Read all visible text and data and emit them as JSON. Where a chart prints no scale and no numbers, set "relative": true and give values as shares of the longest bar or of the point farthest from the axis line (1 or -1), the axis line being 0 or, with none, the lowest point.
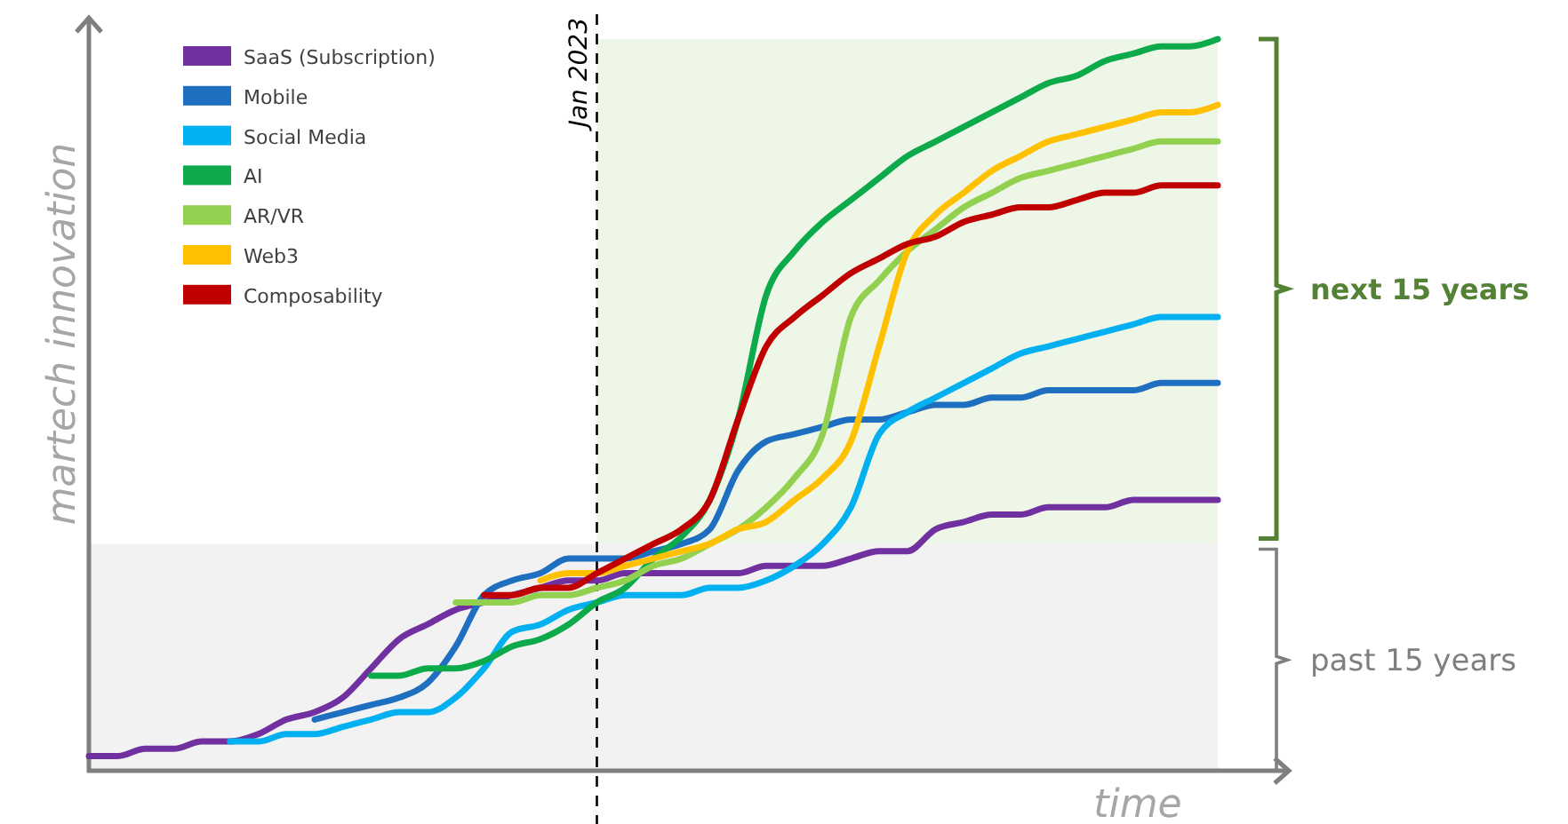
{
  "chart_data": {
    "type": "line",
    "relative": true,
    "xlabel": "time",
    "ylabel": "martech innovation",
    "legend": "top left",
    "categories": [
      null,
      null,
      null,
      null,
      null,
      null,
      null,
      null,
      null,
      null,
      null,
      null,
      null,
      null,
      null,
      null,
      null,
      null,
      null,
      null,
      null,
      null,
      null,
      null,
      null,
      null,
      null,
      null,
      null,
      null,
      null,
      null,
      null,
      null,
      null,
      null,
      null,
      null,
      null,
      null,
      null
    ],
    "series": [
      {
        "name": "SaaS (Subscription)",
        "color": "#7030a0",
        "values": [
          0.02,
          0.02,
          0.03,
          0.03,
          0.04,
          0.04,
          0.05,
          0.07,
          0.08,
          0.1,
          0.14,
          0.18,
          0.2,
          0.22,
          0.23,
          0.24,
          0.25,
          0.26,
          0.26,
          0.27,
          0.27,
          0.27,
          0.27,
          0.27,
          0.28,
          0.28,
          0.28,
          0.29,
          0.3,
          0.3,
          0.33,
          0.34,
          0.35,
          0.35,
          0.36,
          0.36,
          0.36,
          0.37,
          0.37,
          0.37,
          0.37
        ]
      },
      {
        "name": "Mobile",
        "color": "#1f6fc0",
        "values": [
          null,
          null,
          null,
          null,
          null,
          null,
          null,
          null,
          0.07,
          0.08,
          0.09,
          0.1,
          0.12,
          0.17,
          0.24,
          0.26,
          0.27,
          0.29,
          0.29,
          0.29,
          0.3,
          0.31,
          0.33,
          0.41,
          0.45,
          0.46,
          0.47,
          0.48,
          0.48,
          0.49,
          0.5,
          0.5,
          0.51,
          0.51,
          0.52,
          0.52,
          0.52,
          0.52,
          0.53,
          0.53,
          0.53
        ]
      },
      {
        "name": "Social Media",
        "color": "#00b0f0",
        "values": [
          null,
          null,
          null,
          null,
          null,
          0.04,
          0.04,
          0.05,
          0.05,
          0.06,
          0.07,
          0.08,
          0.08,
          0.1,
          0.14,
          0.19,
          0.2,
          0.22,
          0.23,
          0.24,
          0.24,
          0.24,
          0.25,
          0.25,
          0.26,
          0.28,
          0.31,
          0.36,
          0.46,
          0.49,
          0.51,
          0.53,
          0.55,
          0.57,
          0.58,
          0.59,
          0.6,
          0.61,
          0.62,
          0.62,
          0.62
        ]
      },
      {
        "name": "AI",
        "color": "#0daa4b",
        "values": [
          null,
          null,
          null,
          null,
          null,
          null,
          null,
          null,
          null,
          null,
          0.13,
          0.13,
          0.14,
          0.14,
          0.15,
          0.17,
          0.18,
          0.2,
          0.23,
          0.25,
          0.29,
          0.32,
          0.37,
          0.48,
          0.65,
          0.71,
          0.75,
          0.78,
          0.81,
          0.84,
          0.86,
          0.88,
          0.9,
          0.92,
          0.94,
          0.95,
          0.97,
          0.98,
          0.99,
          0.99,
          1
        ]
      },
      {
        "name": "AR/VR",
        "color": "#92d050",
        "values": [
          null,
          null,
          null,
          null,
          null,
          null,
          null,
          null,
          null,
          null,
          null,
          null,
          null,
          0.23,
          0.23,
          0.23,
          0.24,
          0.24,
          0.25,
          0.26,
          0.28,
          0.29,
          0.31,
          0.33,
          0.36,
          0.4,
          0.46,
          0.62,
          0.67,
          0.71,
          0.74,
          0.77,
          0.79,
          0.81,
          0.82,
          0.83,
          0.84,
          0.85,
          0.86,
          0.86,
          0.86
        ]
      },
      {
        "name": "Web3",
        "color": "#ffc000",
        "values": [
          null,
          null,
          null,
          null,
          null,
          null,
          null,
          null,
          null,
          null,
          null,
          null,
          null,
          null,
          null,
          null,
          0.26,
          0.27,
          0.27,
          0.28,
          0.29,
          0.3,
          0.31,
          0.33,
          0.34,
          0.37,
          0.4,
          0.45,
          0.58,
          0.71,
          0.76,
          0.79,
          0.82,
          0.84,
          0.86,
          0.87,
          0.88,
          0.89,
          0.9,
          0.9,
          0.91
        ]
      },
      {
        "name": "Composability",
        "color": "#c00000",
        "values": [
          null,
          null,
          null,
          null,
          null,
          null,
          null,
          null,
          null,
          null,
          null,
          null,
          null,
          null,
          0.24,
          0.24,
          0.25,
          0.25,
          0.27,
          0.29,
          0.31,
          0.33,
          0.37,
          0.48,
          0.58,
          0.62,
          0.65,
          0.68,
          0.7,
          0.72,
          0.73,
          0.75,
          0.76,
          0.77,
          0.77,
          0.78,
          0.79,
          0.79,
          0.8,
          0.8,
          0.8
        ]
      }
    ],
    "annotations": [
      "Jan 2023",
      "next 15 years",
      "past 15 years"
    ],
    "bands": [
      {
        "axis": "y",
        "from": 0.31,
        "to": 1,
        "color": "#eef6e8"
      },
      {
        "axis": "y",
        "from": 0,
        "to": 0.31,
        "color": "#f2f2f2"
      }
    ]
  }
}
